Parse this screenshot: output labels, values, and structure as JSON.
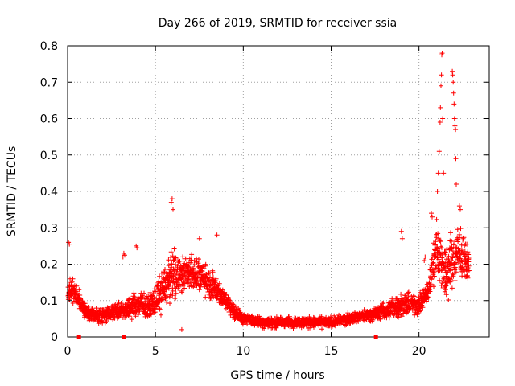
{
  "chart_data": {
    "type": "scatter",
    "title": "Day 266 of 2019, SRMTID for receiver ssia",
    "xlabel": "GPS time / hours",
    "ylabel": "SRMTID / TECUs",
    "xlim": [
      0,
      24
    ],
    "ylim": [
      0,
      0.8
    ],
    "x_ticks": [
      "0",
      "5",
      "10",
      "15",
      "20"
    ],
    "x_tick_values": [
      0,
      5,
      10,
      15,
      20
    ],
    "y_ticks": [
      "0",
      "0.1",
      "0.2",
      "0.3",
      "0.4",
      "0.5",
      "0.6",
      "0.7",
      "0.8"
    ],
    "y_tick_values": [
      0,
      0.1,
      0.2,
      0.3,
      0.4,
      0.5,
      0.6,
      0.7,
      0.8
    ],
    "grid": true,
    "marker": "plus",
    "color": "#ff0000",
    "gap_markers_x": [
      0.65,
      3.2,
      17.55
    ],
    "profile": {
      "description_hours": [
        0,
        0.25,
        0.6,
        1.0,
        1.5,
        2.0,
        2.5,
        3.0,
        3.5,
        4.0,
        4.5,
        5.0,
        5.5,
        6.0,
        6.5,
        7.0,
        7.5,
        8.0,
        8.5,
        9.0,
        9.5,
        10.0,
        11.0,
        12.0,
        13.0,
        14.0,
        15.0,
        16.0,
        17.0,
        18.0,
        18.5,
        19.0,
        19.5,
        20.0,
        20.5,
        21.0,
        21.5,
        22.0,
        22.5,
        22.8
      ],
      "base_tecu": [
        0.12,
        0.13,
        0.11,
        0.07,
        0.06,
        0.06,
        0.07,
        0.07,
        0.08,
        0.09,
        0.08,
        0.1,
        0.14,
        0.17,
        0.17,
        0.18,
        0.17,
        0.15,
        0.13,
        0.1,
        0.07,
        0.05,
        0.04,
        0.04,
        0.04,
        0.04,
        0.04,
        0.05,
        0.06,
        0.07,
        0.08,
        0.09,
        0.09,
        0.09,
        0.12,
        0.25,
        0.17,
        0.22,
        0.22,
        0.2
      ],
      "spread_tecu": [
        0.04,
        0.04,
        0.04,
        0.03,
        0.03,
        0.03,
        0.03,
        0.03,
        0.04,
        0.05,
        0.04,
        0.05,
        0.08,
        0.09,
        0.07,
        0.07,
        0.06,
        0.06,
        0.05,
        0.04,
        0.03,
        0.02,
        0.02,
        0.02,
        0.02,
        0.02,
        0.02,
        0.02,
        0.02,
        0.03,
        0.04,
        0.04,
        0.04,
        0.04,
        0.04,
        0.1,
        0.1,
        0.12,
        0.08,
        0.06
      ]
    },
    "outliers": [
      {
        "x": 0.05,
        "y": 0.26
      },
      {
        "x": 0.1,
        "y": 0.255
      },
      {
        "x": 3.15,
        "y": 0.22
      },
      {
        "x": 3.2,
        "y": 0.23
      },
      {
        "x": 3.25,
        "y": 0.225
      },
      {
        "x": 3.9,
        "y": 0.25
      },
      {
        "x": 3.95,
        "y": 0.245
      },
      {
        "x": 5.9,
        "y": 0.37
      },
      {
        "x": 5.95,
        "y": 0.38
      },
      {
        "x": 6.0,
        "y": 0.35
      },
      {
        "x": 6.5,
        "y": 0.02
      },
      {
        "x": 7.5,
        "y": 0.27
      },
      {
        "x": 8.5,
        "y": 0.28
      },
      {
        "x": 19.0,
        "y": 0.29
      },
      {
        "x": 19.05,
        "y": 0.27
      },
      {
        "x": 20.3,
        "y": 0.21
      },
      {
        "x": 20.35,
        "y": 0.22
      },
      {
        "x": 20.7,
        "y": 0.34
      },
      {
        "x": 20.75,
        "y": 0.33
      },
      {
        "x": 21.05,
        "y": 0.4
      },
      {
        "x": 21.1,
        "y": 0.45
      },
      {
        "x": 21.15,
        "y": 0.51
      },
      {
        "x": 21.2,
        "y": 0.59
      },
      {
        "x": 21.22,
        "y": 0.63
      },
      {
        "x": 21.25,
        "y": 0.69
      },
      {
        "x": 21.28,
        "y": 0.72
      },
      {
        "x": 21.3,
        "y": 0.775
      },
      {
        "x": 21.32,
        "y": 0.78
      },
      {
        "x": 21.35,
        "y": 0.6
      },
      {
        "x": 21.4,
        "y": 0.45
      },
      {
        "x": 21.9,
        "y": 0.73
      },
      {
        "x": 21.92,
        "y": 0.72
      },
      {
        "x": 21.95,
        "y": 0.7
      },
      {
        "x": 21.97,
        "y": 0.67
      },
      {
        "x": 22.0,
        "y": 0.64
      },
      {
        "x": 22.02,
        "y": 0.6
      },
      {
        "x": 22.05,
        "y": 0.58
      },
      {
        "x": 22.08,
        "y": 0.57
      },
      {
        "x": 22.1,
        "y": 0.49
      },
      {
        "x": 22.12,
        "y": 0.42
      },
      {
        "x": 22.3,
        "y": 0.36
      },
      {
        "x": 22.35,
        "y": 0.35
      }
    ]
  }
}
